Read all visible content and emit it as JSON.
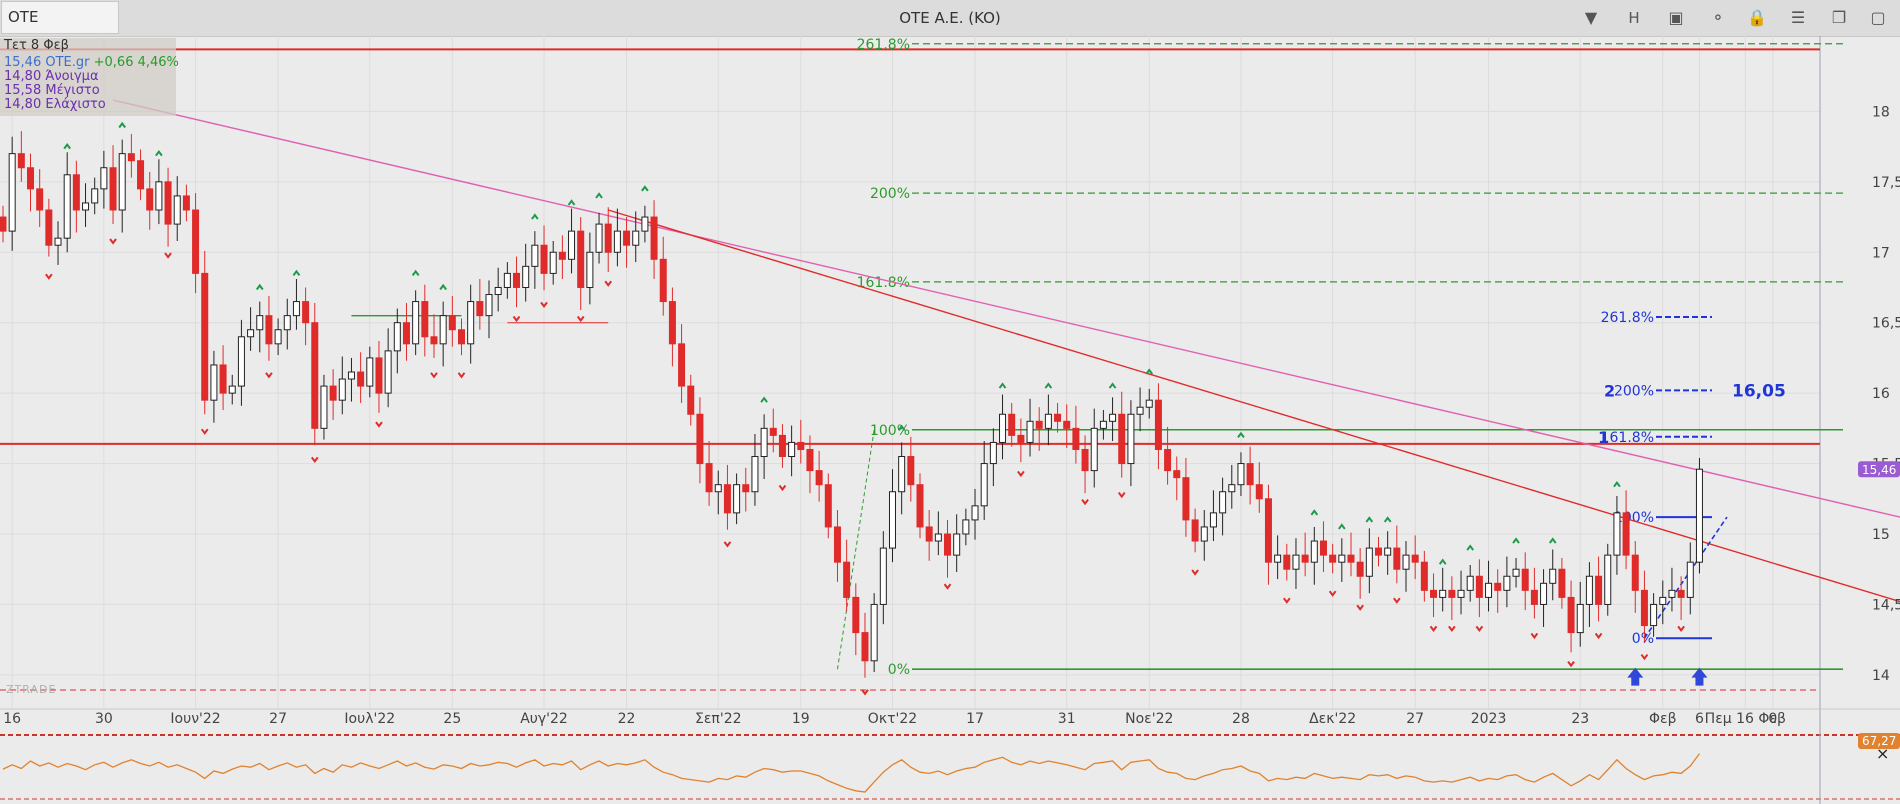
{
  "toolbar": {
    "symbol": "OTE",
    "title": "OTE A.E. (KO)",
    "period": "H"
  },
  "info": {
    "date": "Τετ 8 Φεβ",
    "close": "15,46",
    "exchange": "OTE.gr",
    "change": "+0,66",
    "change_pct": "4,46%",
    "open": "14,80",
    "open_label": "Άνοιγμα",
    "high": "15,58",
    "high_label": "Μέγιστο",
    "low": "14,80",
    "low_label": "Ελάχιστο"
  },
  "watermark": "ZTRADE",
  "colors": {
    "up": "#ffffff",
    "down": "#e02b2b",
    "fib": "#2e9a2e",
    "fib_small": "#1f35d6",
    "trend_pink": "#e060b0",
    "trend_red": "#e02b2b",
    "osc": "#e0822e",
    "price_badge": "#9a5cd0",
    "osc_badge": "#e0822e"
  },
  "chart_data": {
    "type": "candlestick",
    "ylim": [
      13.85,
      18.45
    ],
    "y_ticks": [
      "18",
      "17,5",
      "17",
      "16,5",
      "16",
      "15,5",
      "15",
      "14,5",
      "14"
    ],
    "y_tick_values": [
      18,
      17.5,
      17,
      16.5,
      16,
      15.5,
      15,
      14.5,
      14
    ],
    "x_ticks": [
      {
        "label": "16",
        "i": 1
      },
      {
        "label": "30",
        "i": 11
      },
      {
        "label": "Ιουν'22",
        "i": 21
      },
      {
        "label": "27",
        "i": 30
      },
      {
        "label": "Ιουλ'22",
        "i": 40
      },
      {
        "label": "25",
        "i": 49
      },
      {
        "label": "Αυγ'22",
        "i": 59
      },
      {
        "label": "22",
        "i": 68
      },
      {
        "label": "Σεπ'22",
        "i": 78
      },
      {
        "label": "19",
        "i": 87
      },
      {
        "label": "Οκτ'22",
        "i": 97
      },
      {
        "label": "17",
        "i": 106
      },
      {
        "label": "31",
        "i": 116
      },
      {
        "label": "Νοε'22",
        "i": 125
      },
      {
        "label": "28",
        "i": 135
      },
      {
        "label": "Δεκ'22",
        "i": 145
      },
      {
        "label": "27",
        "i": 154
      },
      {
        "label": "2023",
        "i": 162
      },
      {
        "label": "23",
        "i": 172
      },
      {
        "label": "Φεβ",
        "i": 181
      },
      {
        "label": "6",
        "i": 185
      },
      {
        "label": "Πεμ 16 Φεβ",
        "i": 190
      },
      {
        "label": "0",
        "i": 193
      }
    ],
    "current_price": "15,46",
    "close": [
      17.15,
      17.7,
      17.6,
      17.45,
      17.3,
      17.05,
      17.1,
      17.55,
      17.3,
      17.35,
      17.45,
      17.6,
      17.3,
      17.7,
      17.65,
      17.45,
      17.3,
      17.5,
      17.2,
      17.4,
      17.3,
      16.85,
      15.95,
      16.2,
      16.0,
      16.05,
      16.4,
      16.45,
      16.55,
      16.35,
      16.45,
      16.55,
      16.65,
      16.5,
      15.75,
      16.05,
      15.95,
      16.1,
      16.15,
      16.05,
      16.25,
      16.0,
      16.3,
      16.5,
      16.35,
      16.65,
      16.4,
      16.35,
      16.55,
      16.45,
      16.35,
      16.65,
      16.55,
      16.7,
      16.75,
      16.85,
      16.75,
      16.9,
      17.05,
      16.85,
      17.0,
      16.95,
      17.15,
      16.75,
      17.0,
      17.2,
      17.0,
      17.15,
      17.05,
      17.15,
      17.25,
      16.95,
      16.65,
      16.35,
      16.05,
      15.85,
      15.5,
      15.3,
      15.35,
      15.15,
      15.35,
      15.3,
      15.55,
      15.75,
      15.7,
      15.55,
      15.65,
      15.6,
      15.45,
      15.35,
      15.05,
      14.8,
      14.55,
      14.3,
      14.1,
      14.5,
      14.9,
      15.3,
      15.55,
      15.35,
      15.05,
      14.95,
      15.0,
      14.85,
      15.0,
      15.1,
      15.2,
      15.5,
      15.65,
      15.85,
      15.7,
      15.65,
      15.8,
      15.75,
      15.85,
      15.8,
      15.75,
      15.6,
      15.45,
      15.75,
      15.8,
      15.85,
      15.5,
      15.85,
      15.9,
      15.95,
      15.6,
      15.45,
      15.4,
      15.1,
      14.95,
      15.05,
      15.15,
      15.3,
      15.35,
      15.5,
      15.35,
      15.25,
      14.8,
      14.85,
      14.75,
      14.85,
      14.8,
      14.95,
      14.85,
      14.8,
      14.85,
      14.8,
      14.7,
      14.9,
      14.85,
      14.9,
      14.75,
      14.85,
      14.8,
      14.6,
      14.55,
      14.6,
      14.55,
      14.6,
      14.7,
      14.55,
      14.65,
      14.6,
      14.7,
      14.75,
      14.6,
      14.5,
      14.65,
      14.75,
      14.55,
      14.3,
      14.5,
      14.7,
      14.5,
      14.85,
      15.15,
      14.85,
      14.6,
      14.35,
      14.5,
      14.55,
      14.6,
      14.55,
      14.8,
      15.46
    ],
    "fib_main": [
      {
        "label": "261.8%",
        "value": 18.48
      },
      {
        "label": "200%",
        "value": 17.42
      },
      {
        "label": "161.8%",
        "value": 16.79
      },
      {
        "label": "100%",
        "value": 15.74
      },
      {
        "label": "0%",
        "value": 14.04
      }
    ],
    "fib_small": [
      {
        "label": "261.8%",
        "value": 16.54,
        "prefix": ""
      },
      {
        "label": "200%",
        "value": 16.02,
        "prefix": "2"
      },
      {
        "label": "161.8%",
        "value": 15.69,
        "prefix": "1"
      },
      {
        "label": "100%",
        "value": 15.12,
        "prefix": ""
      },
      {
        "label": "0%",
        "value": 14.26,
        "prefix": ""
      }
    ],
    "fib_target": "16,05",
    "horizontal_lines": [
      18.44,
      15.64
    ],
    "oscillator": {
      "badge": "67,27",
      "values": [
        45,
        52,
        46,
        58,
        50,
        55,
        48,
        54,
        50,
        44,
        52,
        56,
        48,
        55,
        60,
        54,
        50,
        56,
        48,
        52,
        46,
        40,
        30,
        42,
        38,
        45,
        50,
        48,
        54,
        44,
        50,
        55,
        48,
        52,
        38,
        46,
        40,
        52,
        48,
        55,
        50,
        46,
        52,
        58,
        50,
        55,
        48,
        45,
        52,
        50,
        46,
        54,
        50,
        52,
        56,
        54,
        48,
        55,
        60,
        50,
        54,
        52,
        58,
        44,
        52,
        58,
        50,
        54,
        52,
        55,
        60,
        48,
        40,
        36,
        30,
        28,
        26,
        24,
        30,
        28,
        34,
        32,
        40,
        46,
        44,
        40,
        42,
        42,
        38,
        34,
        26,
        20,
        14,
        10,
        8,
        24,
        40,
        52,
        60,
        48,
        40,
        38,
        42,
        36,
        42,
        46,
        48,
        56,
        60,
        64,
        56,
        52,
        58,
        54,
        58,
        55,
        52,
        48,
        44,
        54,
        56,
        58,
        44,
        56,
        58,
        60,
        46,
        40,
        38,
        30,
        28,
        34,
        38,
        44,
        46,
        50,
        42,
        38,
        26,
        30,
        28,
        32,
        30,
        38,
        34,
        30,
        32,
        30,
        28,
        36,
        34,
        36,
        30,
        34,
        32,
        26,
        24,
        26,
        24,
        28,
        32,
        26,
        30,
        28,
        34,
        36,
        28,
        24,
        32,
        38,
        28,
        18,
        26,
        36,
        28,
        44,
        60,
        46,
        36,
        28,
        34,
        36,
        40,
        38,
        50,
        70
      ]
    }
  }
}
